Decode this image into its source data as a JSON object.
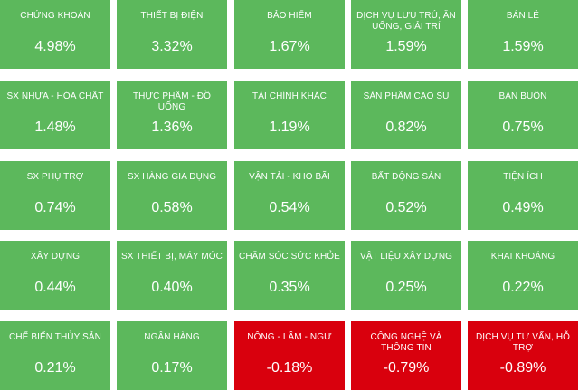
{
  "colors": {
    "positive": "#5cb85c",
    "negative": "#d9000d",
    "text": "#ffffff"
  },
  "tiles": [
    {
      "name": "CHỨNG KHOÁN",
      "value": "4.98%",
      "trend": "up"
    },
    {
      "name": "THIẾT BỊ ĐIỆN",
      "value": "3.32%",
      "trend": "up"
    },
    {
      "name": "BẢO HIỂM",
      "value": "1.67%",
      "trend": "up"
    },
    {
      "name": "DỊCH VỤ LƯU TRÚ, ĂN UỐNG, GIẢI TRÍ",
      "value": "1.59%",
      "trend": "up"
    },
    {
      "name": "BÁN LẺ",
      "value": "1.59%",
      "trend": "up"
    },
    {
      "name": "SX NHỰA - HÓA CHẤT",
      "value": "1.48%",
      "trend": "up"
    },
    {
      "name": "THỰC PHẨM - ĐỒ UỐNG",
      "value": "1.36%",
      "trend": "up"
    },
    {
      "name": "TÀI CHÍNH KHÁC",
      "value": "1.19%",
      "trend": "up"
    },
    {
      "name": "SẢN PHẨM CAO SU",
      "value": "0.82%",
      "trend": "up"
    },
    {
      "name": "BÁN BUÔN",
      "value": "0.75%",
      "trend": "up"
    },
    {
      "name": "SX PHỤ TRỢ",
      "value": "0.74%",
      "trend": "up"
    },
    {
      "name": "SX HÀNG GIA DỤNG",
      "value": "0.58%",
      "trend": "up"
    },
    {
      "name": "VẬN TẢI - KHO BÃI",
      "value": "0.54%",
      "trend": "up"
    },
    {
      "name": "BẤT ĐỘNG SẢN",
      "value": "0.52%",
      "trend": "up"
    },
    {
      "name": "TIỆN ÍCH",
      "value": "0.49%",
      "trend": "up"
    },
    {
      "name": "XÂY DỰNG",
      "value": "0.44%",
      "trend": "up"
    },
    {
      "name": "SX THIẾT BỊ, MÁY MÓC",
      "value": "0.40%",
      "trend": "up"
    },
    {
      "name": "CHĂM SÓC SỨC KHỎE",
      "value": "0.35%",
      "trend": "up"
    },
    {
      "name": "VẬT LIỆU XÂY DỰNG",
      "value": "0.25%",
      "trend": "up"
    },
    {
      "name": "KHAI KHOÁNG",
      "value": "0.22%",
      "trend": "up"
    },
    {
      "name": "CHẾ BIẾN THỦY SẢN",
      "value": "0.21%",
      "trend": "up"
    },
    {
      "name": "NGÂN HÀNG",
      "value": "0.17%",
      "trend": "up"
    },
    {
      "name": "NÔNG - LÂM - NGƯ",
      "value": "-0.18%",
      "trend": "down"
    },
    {
      "name": "CÔNG NGHỆ VÀ THÔNG TIN",
      "value": "-0.79%",
      "trend": "down"
    },
    {
      "name": "DỊCH VỤ TƯ VẤN, HỖ TRỢ",
      "value": "-0.89%",
      "trend": "down"
    }
  ]
}
